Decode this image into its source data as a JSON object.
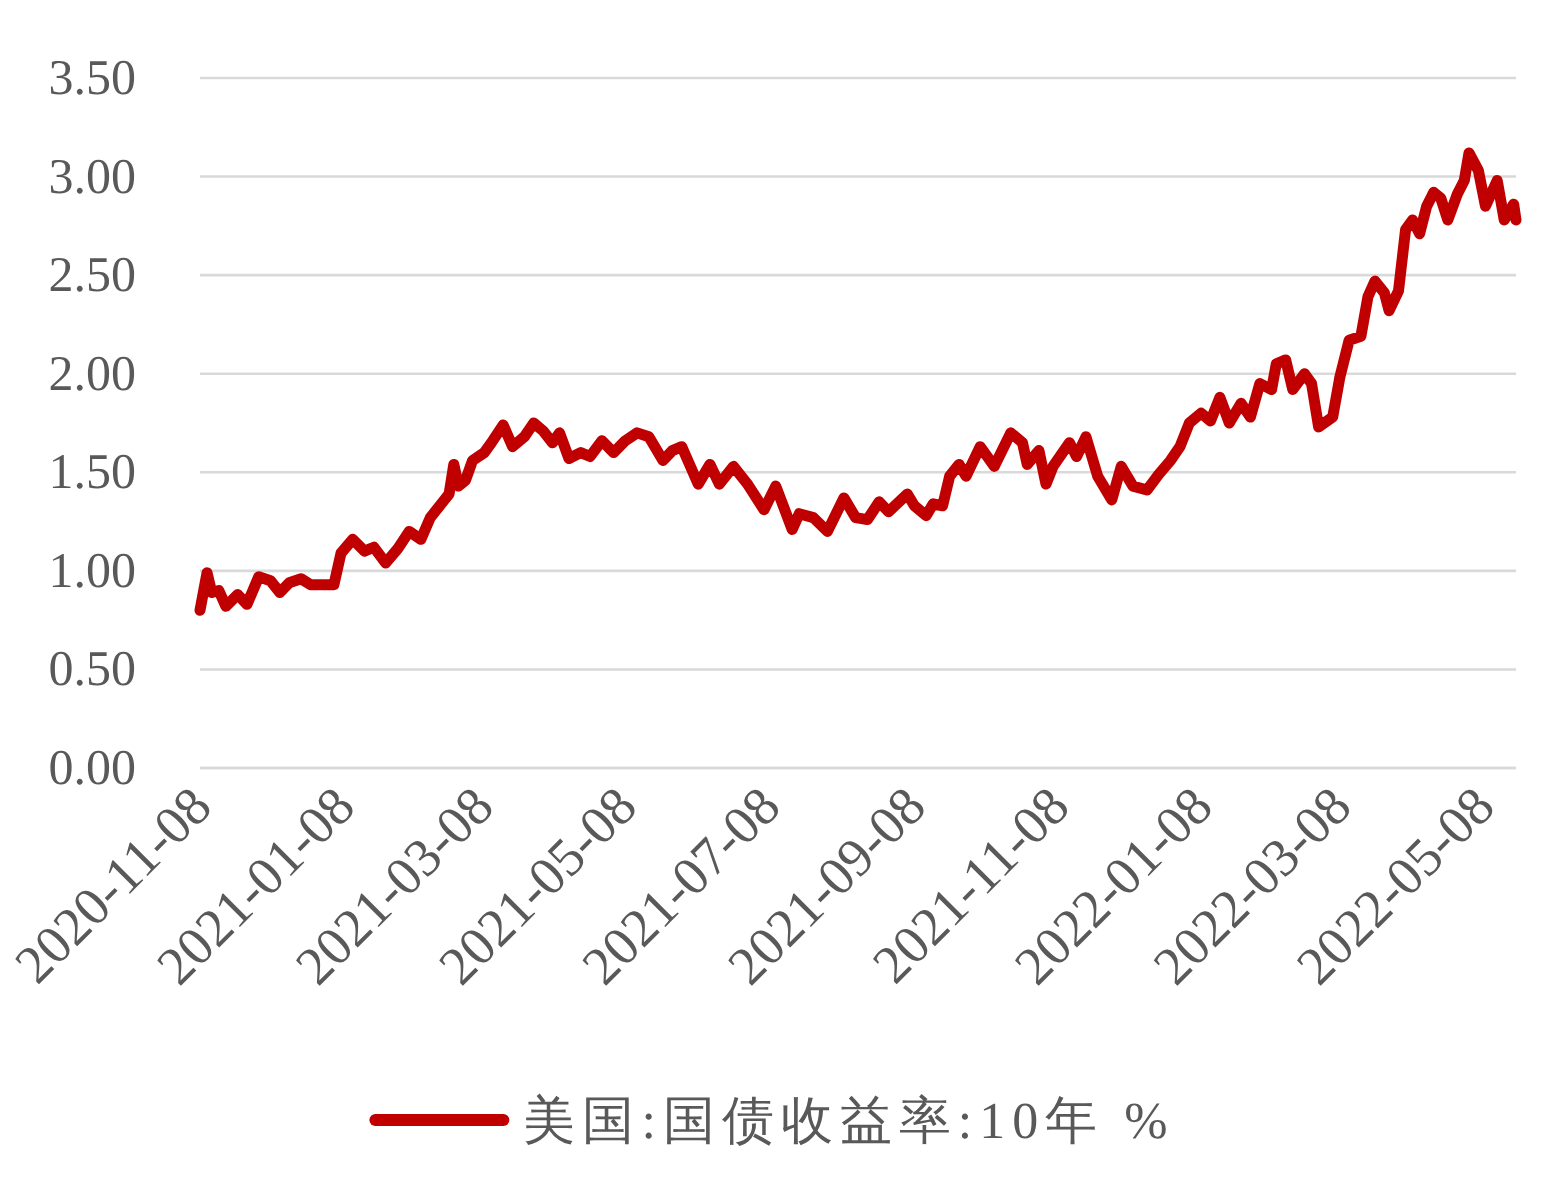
{
  "chart_data": {
    "type": "line",
    "x": [
      "2020-11-06",
      "2020-11-09",
      "2020-11-11",
      "2020-11-14",
      "2020-11-17",
      "2020-11-22",
      "2020-11-26",
      "2020-12-01",
      "2020-12-06",
      "2020-12-10",
      "2020-12-14",
      "2020-12-19",
      "2020-12-23",
      "2020-12-29",
      "2021-01-02",
      "2021-01-05",
      "2021-01-10",
      "2021-01-15",
      "2021-01-19",
      "2021-01-24",
      "2021-01-29",
      "2021-02-03",
      "2021-02-08",
      "2021-02-12",
      "2021-02-18",
      "2021-02-20",
      "2021-02-22",
      "2021-02-24",
      "2021-02-27",
      "2021-03-02",
      "2021-03-07",
      "2021-03-10",
      "2021-03-15",
      "2021-03-19",
      "2021-03-24",
      "2021-03-28",
      "2021-04-01",
      "2021-04-05",
      "2021-04-08",
      "2021-04-12",
      "2021-04-17",
      "2021-04-21",
      "2021-04-26",
      "2021-05-01",
      "2021-05-06",
      "2021-05-11",
      "2021-05-16",
      "2021-05-22",
      "2021-05-26",
      "2021-05-30",
      "2021-06-06",
      "2021-06-11",
      "2021-06-15",
      "2021-06-21",
      "2021-06-27",
      "2021-07-04",
      "2021-07-09",
      "2021-07-16",
      "2021-07-19",
      "2021-07-25",
      "2021-07-31",
      "2021-08-07",
      "2021-08-12",
      "2021-08-17",
      "2021-08-22",
      "2021-08-26",
      "2021-09-03",
      "2021-09-06",
      "2021-09-11",
      "2021-09-14",
      "2021-09-18",
      "2021-09-21",
      "2021-09-25",
      "2021-09-28",
      "2021-10-04",
      "2021-10-10",
      "2021-10-17",
      "2021-10-22",
      "2021-10-24",
      "2021-10-29",
      "2021-11-01",
      "2021-11-04",
      "2021-11-11",
      "2021-11-14",
      "2021-11-18",
      "2021-11-23",
      "2021-11-29",
      "2021-12-03",
      "2021-12-08",
      "2021-12-14",
      "2021-12-19",
      "2021-12-24",
      "2021-12-28",
      "2022-01-01",
      "2022-01-06",
      "2022-01-10",
      "2022-01-14",
      "2022-01-18",
      "2022-01-23",
      "2022-01-27",
      "2022-01-31",
      "2022-02-05",
      "2022-02-07",
      "2022-02-11",
      "2022-02-14",
      "2022-02-19",
      "2022-02-22",
      "2022-02-25",
      "2022-03-03",
      "2022-03-06",
      "2022-03-10",
      "2022-03-15",
      "2022-03-18",
      "2022-03-21",
      "2022-03-25",
      "2022-03-27",
      "2022-03-31",
      "2022-04-03",
      "2022-04-06",
      "2022-04-09",
      "2022-04-12",
      "2022-04-15",
      "2022-04-18",
      "2022-04-21",
      "2022-04-25",
      "2022-04-28",
      "2022-04-30",
      "2022-05-04",
      "2022-05-07",
      "2022-05-12",
      "2022-05-15",
      "2022-05-19",
      "2022-05-20"
    ],
    "series": [
      {
        "name": "美国:国债收益率:10年 %",
        "color": "#c00000",
        "values": [
          0.8,
          0.99,
          0.89,
          0.9,
          0.82,
          0.88,
          0.83,
          0.97,
          0.95,
          0.89,
          0.94,
          0.96,
          0.93,
          0.93,
          0.93,
          1.09,
          1.16,
          1.1,
          1.12,
          1.04,
          1.11,
          1.2,
          1.16,
          1.27,
          1.36,
          1.39,
          1.54,
          1.43,
          1.46,
          1.56,
          1.6,
          1.65,
          1.74,
          1.63,
          1.68,
          1.75,
          1.71,
          1.65,
          1.7,
          1.57,
          1.6,
          1.58,
          1.66,
          1.6,
          1.66,
          1.7,
          1.68,
          1.56,
          1.61,
          1.63,
          1.44,
          1.54,
          1.44,
          1.53,
          1.44,
          1.31,
          1.43,
          1.21,
          1.29,
          1.27,
          1.2,
          1.37,
          1.27,
          1.26,
          1.35,
          1.3,
          1.39,
          1.33,
          1.28,
          1.34,
          1.33,
          1.48,
          1.54,
          1.48,
          1.63,
          1.53,
          1.7,
          1.65,
          1.54,
          1.61,
          1.44,
          1.53,
          1.65,
          1.58,
          1.68,
          1.48,
          1.36,
          1.53,
          1.43,
          1.41,
          1.49,
          1.56,
          1.63,
          1.75,
          1.8,
          1.76,
          1.88,
          1.75,
          1.85,
          1.78,
          1.95,
          1.92,
          2.05,
          2.07,
          1.92,
          2.0,
          1.95,
          1.73,
          1.78,
          1.98,
          2.17,
          2.19,
          2.39,
          2.47,
          2.41,
          2.32,
          2.42,
          2.73,
          2.78,
          2.71,
          2.85,
          2.92,
          2.89,
          2.78,
          2.91,
          2.98,
          3.12,
          3.03,
          2.85,
          2.98,
          2.78,
          2.86,
          2.78
        ]
      }
    ],
    "xlim": [
      "2020-11-06",
      "2022-05-20"
    ],
    "xticks": [
      "2020-11-08",
      "2021-01-08",
      "2021-03-08",
      "2021-05-08",
      "2021-07-08",
      "2021-09-08",
      "2021-11-08",
      "2022-01-08",
      "2022-03-08",
      "2022-05-08"
    ],
    "ylim": [
      0,
      3.5
    ],
    "yticks": [
      {
        "value": 0,
        "label": "0.00"
      },
      {
        "value": 0.5,
        "label": "0.50"
      },
      {
        "value": 1,
        "label": "1.00"
      },
      {
        "value": 1.5,
        "label": "1.50"
      },
      {
        "value": 2,
        "label": "2.00"
      },
      {
        "value": 2.5,
        "label": "2.50"
      },
      {
        "value": 3,
        "label": "3.00"
      },
      {
        "value": 3.5,
        "label": "3.50"
      }
    ],
    "grid": "y",
    "legend": "bottom"
  }
}
